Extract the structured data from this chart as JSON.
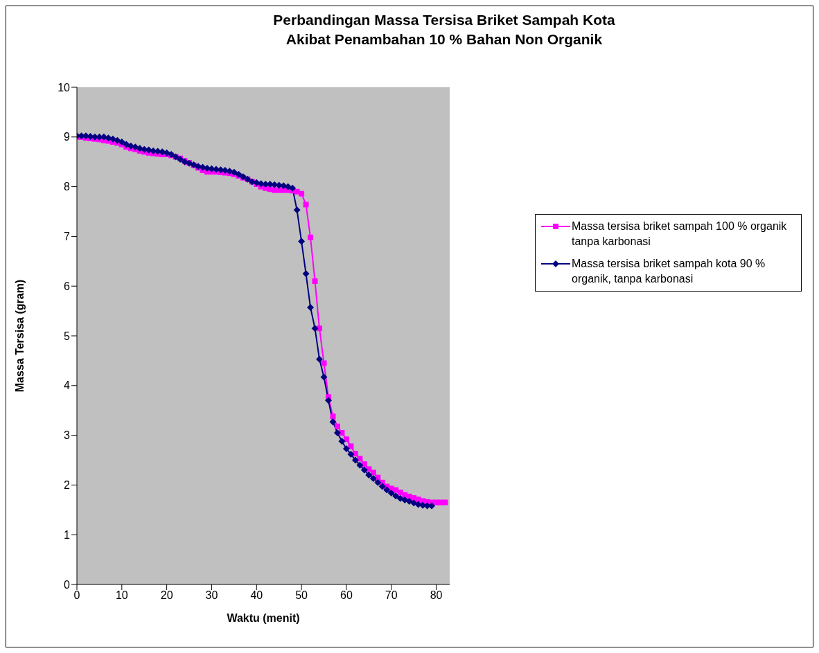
{
  "chart_data": {
    "type": "line",
    "title": "Perbandingan Massa Tersisa Briket Sampah Kota\nAkibat Penambahan 10 % Bahan Non Organik",
    "xlabel": "Waktu (menit)",
    "ylabel": "Massa Tersisa (gram)",
    "xlim": [
      0,
      83
    ],
    "xticks": [
      0,
      10,
      20,
      30,
      40,
      50,
      60,
      70,
      80
    ],
    "ylim": [
      0,
      10
    ],
    "yticks": [
      0,
      1,
      2,
      3,
      4,
      5,
      6,
      7,
      8,
      9,
      10
    ],
    "legend": "right",
    "grid": false,
    "series": [
      {
        "name": "Massa tersisa briket sampah 100 % organik tanpa karbonasi",
        "color": "#ff00ff",
        "marker": "square",
        "x": [
          0,
          1,
          2,
          3,
          4,
          5,
          6,
          7,
          8,
          9,
          10,
          11,
          12,
          13,
          14,
          15,
          16,
          17,
          18,
          19,
          20,
          21,
          22,
          23,
          24,
          25,
          26,
          27,
          28,
          29,
          30,
          31,
          32,
          33,
          34,
          35,
          36,
          37,
          38,
          39,
          40,
          41,
          42,
          43,
          44,
          45,
          46,
          47,
          48,
          49,
          50,
          51,
          52,
          53,
          54,
          55,
          56,
          57,
          58,
          59,
          60,
          61,
          62,
          63,
          64,
          65,
          66,
          67,
          68,
          69,
          70,
          71,
          72,
          73,
          74,
          75,
          76,
          77,
          78,
          79,
          80,
          81,
          82
        ],
        "values": [
          9.0,
          9.0,
          8.98,
          8.97,
          8.96,
          8.95,
          8.93,
          8.92,
          8.9,
          8.88,
          8.85,
          8.8,
          8.77,
          8.75,
          8.72,
          8.7,
          8.68,
          8.67,
          8.66,
          8.65,
          8.65,
          8.63,
          8.6,
          8.57,
          8.52,
          8.48,
          8.43,
          8.38,
          8.33,
          8.3,
          8.3,
          8.3,
          8.29,
          8.28,
          8.27,
          8.25,
          8.22,
          8.18,
          8.15,
          8.1,
          8.05,
          8.0,
          7.97,
          7.95,
          7.93,
          7.93,
          7.93,
          7.93,
          7.92,
          7.9,
          7.86,
          7.64,
          6.98,
          6.1,
          5.15,
          4.45,
          3.77,
          3.38,
          3.18,
          3.05,
          2.92,
          2.78,
          2.63,
          2.53,
          2.42,
          2.32,
          2.25,
          2.15,
          2.05,
          1.97,
          1.93,
          1.9,
          1.85,
          1.8,
          1.77,
          1.74,
          1.71,
          1.68,
          1.66,
          1.65,
          1.65,
          1.65,
          1.65
        ]
      },
      {
        "name": "Massa tersisa briket sampah kota 90 % organik, tanpa karbonasi",
        "color": "#000080",
        "marker": "diamond",
        "x": [
          0,
          1,
          2,
          3,
          4,
          5,
          6,
          7,
          8,
          9,
          10,
          11,
          12,
          13,
          14,
          15,
          16,
          17,
          18,
          19,
          20,
          21,
          22,
          23,
          24,
          25,
          26,
          27,
          28,
          29,
          30,
          31,
          32,
          33,
          34,
          35,
          36,
          37,
          38,
          39,
          40,
          41,
          42,
          43,
          44,
          45,
          46,
          47,
          48,
          49,
          50,
          51,
          52,
          53,
          54,
          55,
          56,
          57,
          58,
          59,
          60,
          61,
          62,
          63,
          64,
          65,
          66,
          67,
          68,
          69,
          70,
          71,
          72,
          73,
          74,
          75,
          76,
          77,
          78,
          79
        ],
        "values": [
          9.02,
          9.02,
          9.02,
          9.01,
          9.0,
          9.0,
          9.0,
          8.98,
          8.96,
          8.93,
          8.9,
          8.85,
          8.82,
          8.8,
          8.77,
          8.75,
          8.74,
          8.72,
          8.71,
          8.7,
          8.68,
          8.65,
          8.6,
          8.55,
          8.5,
          8.47,
          8.44,
          8.41,
          8.39,
          8.37,
          8.36,
          8.35,
          8.34,
          8.33,
          8.31,
          8.29,
          8.25,
          8.2,
          8.15,
          8.1,
          8.08,
          8.06,
          8.05,
          8.05,
          8.04,
          8.03,
          8.02,
          8.0,
          7.97,
          7.53,
          6.9,
          6.25,
          5.57,
          5.15,
          4.53,
          4.17,
          3.7,
          3.27,
          3.05,
          2.88,
          2.73,
          2.62,
          2.5,
          2.4,
          2.3,
          2.2,
          2.13,
          2.05,
          1.97,
          1.9,
          1.84,
          1.78,
          1.73,
          1.7,
          1.67,
          1.64,
          1.61,
          1.59,
          1.58,
          1.58
        ]
      }
    ]
  }
}
